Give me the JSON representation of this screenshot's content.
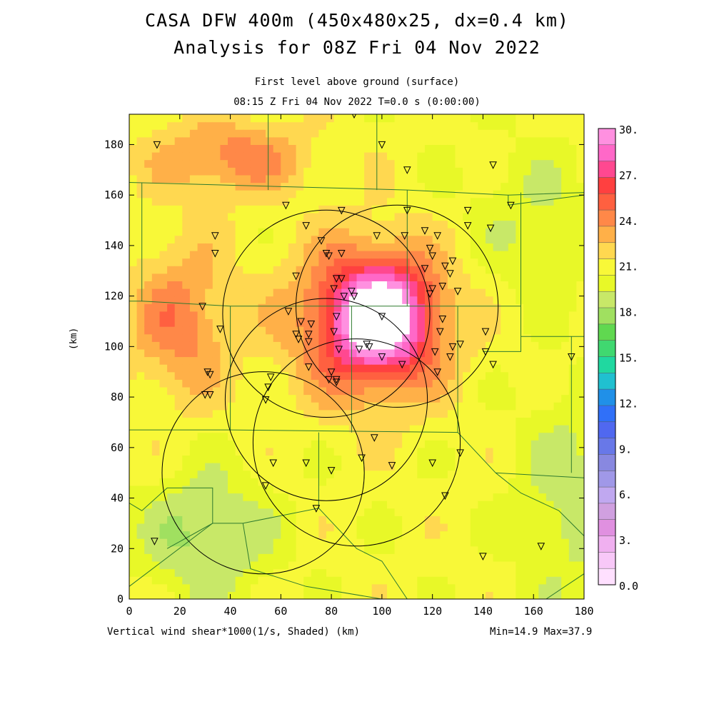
{
  "header": {
    "title_line1": "CASA DFW 400m (450x480x25, dx=0.4 km)",
    "title_line2": "Analysis for 08Z Fri 04 Nov 2022",
    "subtitle_line1": "First level above ground (surface)",
    "subtitle_line2": "08:15 Z Fri 04 Nov 2022   T=0.0 s (0:00:00)"
  },
  "footer": {
    "xlabel": "Vertical wind shear*1000(1/s, Shaded)  (km)",
    "minmax": "Min=14.9 Max=37.9"
  },
  "chart_data": {
    "type": "heatmap",
    "title": "CASA DFW 400m (450x480x25, dx=0.4 km)",
    "ylabel": "(km)",
    "xlim": [
      0,
      180
    ],
    "ylim": [
      0,
      192
    ],
    "x_ticks": [
      0,
      20,
      40,
      60,
      80,
      100,
      120,
      140,
      160,
      180
    ],
    "y_ticks": [
      0,
      20,
      40,
      60,
      80,
      100,
      120,
      140,
      160,
      180
    ],
    "colorbar": {
      "min": 0.0,
      "max": 30.0,
      "step": 1.5,
      "labels": [
        "30.",
        "27.",
        "24.",
        "21.",
        "18.",
        "15.",
        "12.",
        "9.",
        "6.",
        "3.",
        "0.0"
      ],
      "colors_top_to_bottom": [
        "#ff90e0",
        "#ff68c8",
        "#ff4890",
        "#ff4040",
        "#ff6040",
        "#ff8848",
        "#ffb048",
        "#ffd850",
        "#f8f838",
        "#e8f828",
        "#c8e868",
        "#a0e060",
        "#60d850",
        "#40d870",
        "#20d8a0",
        "#20c0d0",
        "#2090e8",
        "#3070f8",
        "#5068f0",
        "#6878e8",
        "#8888e0",
        "#a098e8",
        "#c0a8f0",
        "#d0a0e0",
        "#e090e0",
        "#f0b0f0",
        "#f8c8f8",
        "#ffe0ff"
      ]
    },
    "observations_km": [
      [
        11,
        180
      ],
      [
        89,
        192
      ],
      [
        100,
        180
      ],
      [
        110,
        170
      ],
      [
        144,
        172
      ],
      [
        151,
        156
      ],
      [
        62,
        156
      ],
      [
        84,
        154
      ],
      [
        110,
        154
      ],
      [
        134,
        154
      ],
      [
        70,
        148
      ],
      [
        109,
        144
      ],
      [
        134,
        148
      ],
      [
        143,
        147
      ],
      [
        34,
        144
      ],
      [
        98,
        144
      ],
      [
        117,
        146
      ],
      [
        122,
        144
      ],
      [
        76,
        142
      ],
      [
        78,
        137
      ],
      [
        84,
        137
      ],
      [
        119,
        139
      ],
      [
        120,
        136
      ],
      [
        128,
        134
      ],
      [
        34,
        137
      ],
      [
        79,
        136
      ],
      [
        117,
        131
      ],
      [
        125,
        132
      ],
      [
        127,
        129
      ],
      [
        66,
        128
      ],
      [
        82,
        127
      ],
      [
        84,
        127
      ],
      [
        81,
        123
      ],
      [
        85,
        120
      ],
      [
        89,
        120
      ],
      [
        124,
        124
      ],
      [
        120,
        123
      ],
      [
        130,
        122
      ],
      [
        119,
        121
      ],
      [
        88,
        122
      ],
      [
        100,
        112
      ],
      [
        29,
        116
      ],
      [
        63,
        114
      ],
      [
        68,
        110
      ],
      [
        72,
        109
      ],
      [
        82,
        112
      ],
      [
        124,
        111
      ],
      [
        123,
        106
      ],
      [
        36,
        107
      ],
      [
        71,
        105
      ],
      [
        81,
        106
      ],
      [
        66,
        105
      ],
      [
        67,
        103
      ],
      [
        71,
        102
      ],
      [
        141,
        106
      ],
      [
        94,
        101
      ],
      [
        95,
        100
      ],
      [
        128,
        100
      ],
      [
        131,
        101
      ],
      [
        141,
        98
      ],
      [
        83,
        99
      ],
      [
        91,
        99
      ],
      [
        100,
        96
      ],
      [
        144,
        93
      ],
      [
        80,
        90
      ],
      [
        71,
        92
      ],
      [
        121,
        98
      ],
      [
        127,
        96
      ],
      [
        31,
        90
      ],
      [
        32,
        89
      ],
      [
        108,
        93
      ],
      [
        122,
        90
      ],
      [
        56,
        88
      ],
      [
        82,
        87
      ],
      [
        82,
        86
      ],
      [
        55,
        84
      ],
      [
        30,
        81
      ],
      [
        32,
        81
      ],
      [
        54,
        79
      ],
      [
        97,
        64
      ],
      [
        79,
        87
      ],
      [
        131,
        58
      ],
      [
        92,
        56
      ],
      [
        57,
        54
      ],
      [
        70,
        54
      ],
      [
        80,
        51
      ],
      [
        104,
        53
      ],
      [
        120,
        54
      ],
      [
        54,
        45
      ],
      [
        125,
        41
      ],
      [
        74,
        36
      ],
      [
        10,
        23
      ],
      [
        140,
        17
      ],
      [
        163,
        21
      ],
      [
        175,
        96
      ]
    ],
    "range_rings_km": [
      {
        "cx": 78,
        "cy": 113,
        "r": 41
      },
      {
        "cx": 78,
        "cy": 79,
        "r": 40
      },
      {
        "cx": 106,
        "cy": 116,
        "r": 40
      },
      {
        "cx": 90,
        "cy": 62,
        "r": 41
      },
      {
        "cx": 53,
        "cy": 50,
        "r": 40
      }
    ]
  }
}
